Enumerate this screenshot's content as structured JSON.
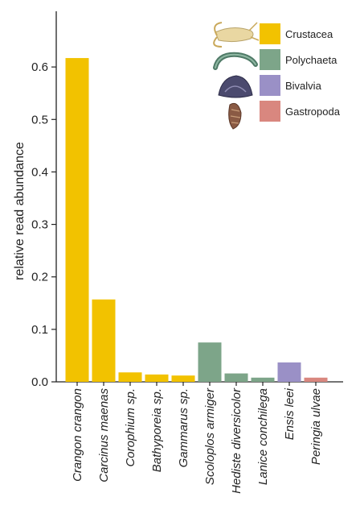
{
  "chart_data": {
    "type": "bar",
    "ylabel": "relative read abundance",
    "ylim": [
      0,
      0.65
    ],
    "yticks": [
      0.0,
      0.1,
      0.2,
      0.3,
      0.4,
      0.5,
      0.6
    ],
    "ytick_labels": [
      "0.0",
      "0.1",
      "0.2",
      "0.3",
      "0.4",
      "0.5",
      "0.6"
    ],
    "categories": [
      "Crangon crangon",
      "Carcinus maenas",
      "Corophium sp.",
      "Bathyporeia sp.",
      "Gammarus sp.",
      "Scoloplos armiger",
      "Hediste diversicolor",
      "Lanice conchilega",
      "Ensis leei",
      "Peringia ulvae"
    ],
    "values": [
      0.617,
      0.157,
      0.018,
      0.014,
      0.012,
      0.075,
      0.016,
      0.008,
      0.037,
      0.008
    ],
    "groups": [
      "Crustacea",
      "Crustacea",
      "Crustacea",
      "Crustacea",
      "Crustacea",
      "Polychaeta",
      "Polychaeta",
      "Polychaeta",
      "Bivalvia",
      "Gastropoda"
    ],
    "legend": [
      {
        "name": "Crustacea",
        "color": "#f2c200",
        "icon": "shrimp-icon"
      },
      {
        "name": "Polychaeta",
        "color": "#7da589",
        "icon": "worm-icon"
      },
      {
        "name": "Bivalvia",
        "color": "#9a90c6",
        "icon": "clam-icon"
      },
      {
        "name": "Gastropoda",
        "color": "#d9877f",
        "icon": "snail-icon"
      }
    ],
    "legend_position": "top-right",
    "grid": false
  }
}
